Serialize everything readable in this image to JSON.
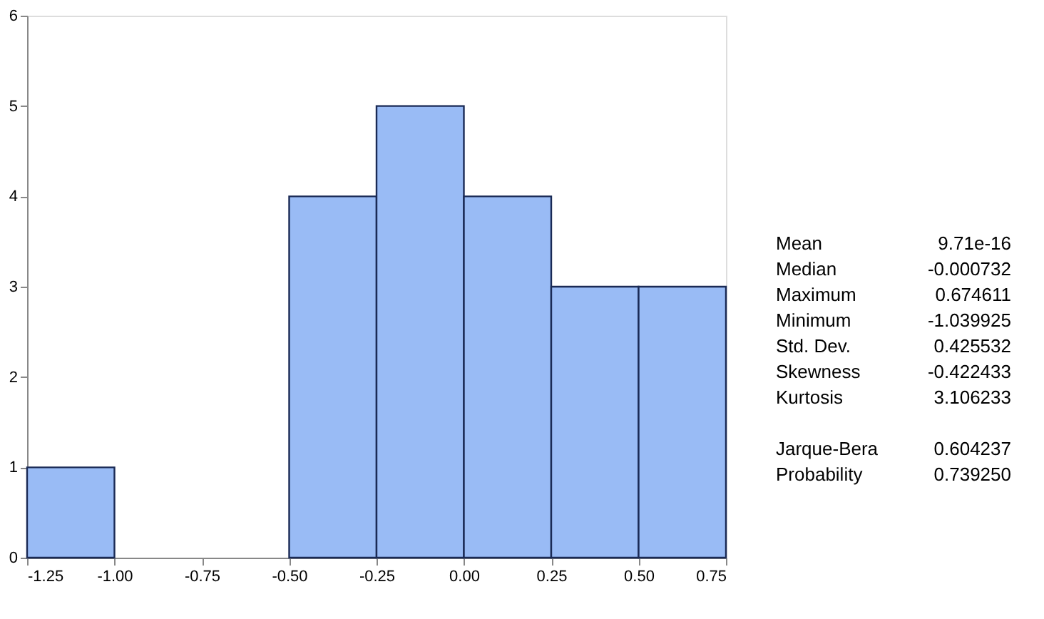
{
  "chart_data": {
    "type": "histogram",
    "bins": [
      -1.25,
      -1.0,
      -0.75,
      -0.5,
      -0.25,
      0.0,
      0.25,
      0.5,
      0.75
    ],
    "values": [
      1,
      0,
      0,
      4,
      5,
      4,
      3,
      3
    ],
    "color": "#99bbf5",
    "xlim": [
      -1.25,
      0.75
    ],
    "xticks": [
      {
        "value": -1.25,
        "label": "-1.25"
      },
      {
        "value": -1.0,
        "label": "-1.00"
      },
      {
        "value": -0.75,
        "label": "-0.75"
      },
      {
        "value": -0.5,
        "label": "-0.50"
      },
      {
        "value": -0.25,
        "label": "-0.25"
      },
      {
        "value": 0.0,
        "label": "0.00"
      },
      {
        "value": 0.25,
        "label": "0.25"
      },
      {
        "value": 0.5,
        "label": "0.50"
      },
      {
        "value": 0.75,
        "label": "0.75"
      }
    ],
    "ylim": [
      0,
      6
    ],
    "yticks": [
      0,
      1,
      2,
      3,
      4,
      5,
      6
    ],
    "grid": false,
    "annotations": [
      "Mean 9.71e-16",
      "Median -0.000732",
      "Maximum 0.674611",
      "Minimum -1.039925",
      "Std. Dev. 0.425532",
      "Skewness -0.422433",
      "Kurtosis 3.106233",
      "Jarque-Bera 0.604237",
      "Probability 0.739250"
    ]
  }
}
